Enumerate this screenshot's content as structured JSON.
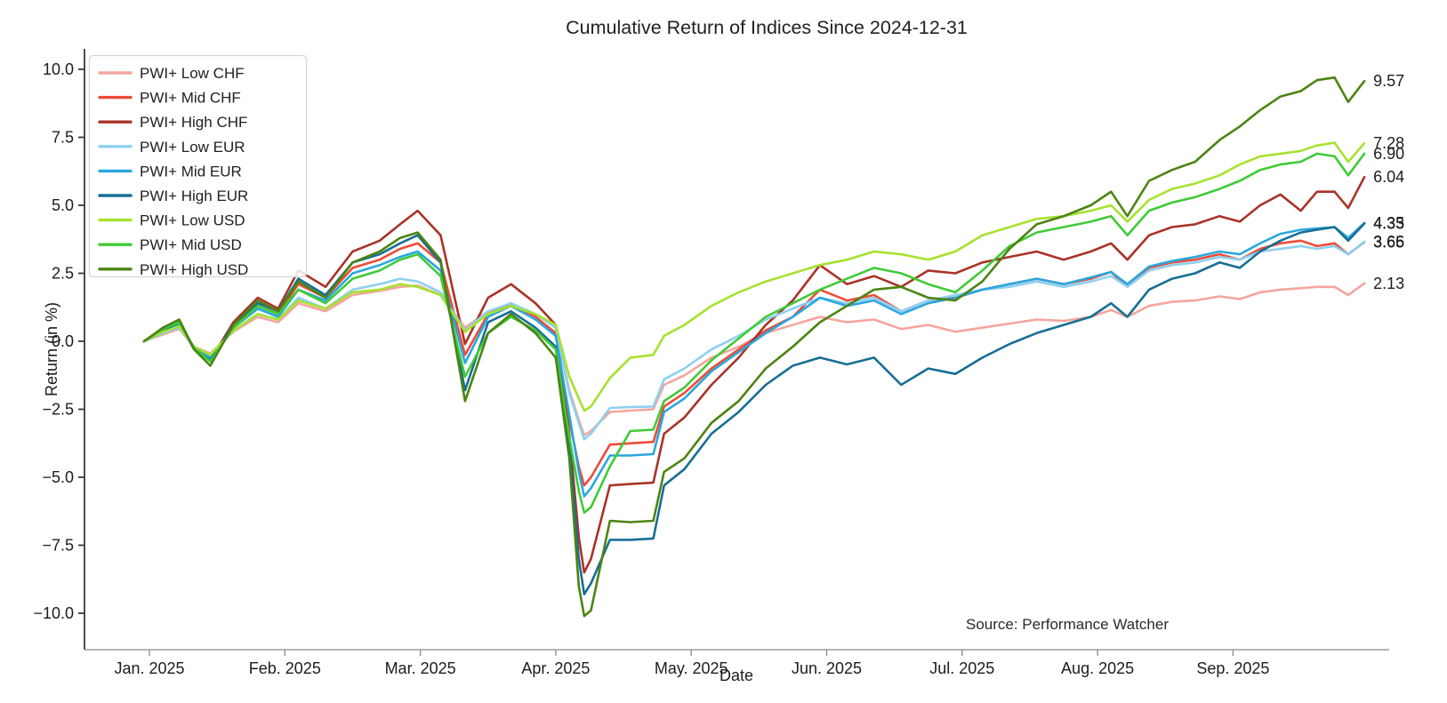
{
  "title": "Cumulative Return of Indices Since 2024-12-31",
  "source_note": "Source: Performance Watcher",
  "chart_data": {
    "type": "line",
    "title": "Cumulative Return of Indices Since 2024-12-31",
    "xlabel": "Date",
    "ylabel": "Return (in %)",
    "grid": false,
    "legend_position": "upper left",
    "ylim": [
      -10.5,
      10.5
    ],
    "y_tick_values": [
      10.0,
      7.5,
      5.0,
      2.5,
      0.0,
      -2.5,
      -5.0,
      -7.5,
      -10.0
    ],
    "y_tick_labels": [
      "10.0",
      "7.5",
      "5.0",
      "2.5",
      "0.0",
      "−2.5",
      "−5.0",
      "−7.5",
      "−10.0"
    ],
    "x_tick_values": [
      0,
      1,
      2,
      3,
      4,
      5,
      6,
      7,
      8
    ],
    "x_tick_labels": [
      "Jan. 2025",
      "Feb. 2025",
      "Mar. 2025",
      "Apr. 2025",
      "May. 2025",
      "Jun. 2025",
      "Jul. 2025",
      "Aug. 2025",
      "Sep. 2025"
    ],
    "x_unit": "months since 2025-01-01 (data starts 2024-12-31, ends late Sep 2025)",
    "x": [
      -0.04,
      0.1,
      0.22,
      0.33,
      0.45,
      0.62,
      0.8,
      0.95,
      1.1,
      1.3,
      1.5,
      1.7,
      1.85,
      1.98,
      2.15,
      2.33,
      2.5,
      2.67,
      2.85,
      3.0,
      3.1,
      3.17,
      3.21,
      3.26,
      3.4,
      3.55,
      3.72,
      3.8,
      3.95,
      4.15,
      4.35,
      4.55,
      4.75,
      4.95,
      5.15,
      5.35,
      5.55,
      5.75,
      5.95,
      6.15,
      6.35,
      6.55,
      6.75,
      6.95,
      7.1,
      7.22,
      7.38,
      7.55,
      7.72,
      7.9,
      8.05,
      8.2,
      8.35,
      8.5,
      8.62,
      8.75,
      8.85,
      8.97
    ],
    "series": [
      {
        "name": "PWI+ Low CHF",
        "color": "#F4A59D",
        "end_label": "2.13",
        "values": [
          0.0,
          0.25,
          0.45,
          -0.2,
          -0.45,
          0.35,
          0.9,
          0.7,
          1.4,
          1.1,
          1.7,
          1.85,
          2.0,
          2.05,
          1.7,
          0.5,
          1.1,
          1.35,
          1.0,
          0.5,
          -1.8,
          -2.9,
          -3.45,
          -3.3,
          -2.6,
          -2.55,
          -2.5,
          -1.6,
          -1.25,
          -0.6,
          -0.2,
          0.3,
          0.6,
          0.9,
          0.7,
          0.8,
          0.45,
          0.6,
          0.35,
          0.5,
          0.65,
          0.8,
          0.75,
          0.9,
          1.15,
          0.9,
          1.3,
          1.45,
          1.5,
          1.65,
          1.55,
          1.8,
          1.9,
          1.95,
          2.0,
          2.0,
          1.7,
          2.13
        ]
      },
      {
        "name": "PWI+ Mid CHF",
        "color": "#ED4C38",
        "end_label": "3.65",
        "values": [
          0.0,
          0.4,
          0.6,
          -0.25,
          -0.6,
          0.55,
          1.3,
          1.0,
          2.1,
          1.6,
          2.7,
          3.0,
          3.4,
          3.6,
          2.9,
          -0.5,
          1.0,
          1.4,
          0.9,
          0.3,
          -2.9,
          -4.6,
          -5.3,
          -5.0,
          -3.8,
          -3.75,
          -3.7,
          -2.4,
          -1.9,
          -1.0,
          -0.3,
          0.4,
          0.9,
          1.9,
          1.5,
          1.7,
          1.1,
          1.5,
          1.6,
          1.9,
          2.1,
          2.3,
          2.1,
          2.3,
          2.55,
          2.0,
          2.7,
          2.9,
          3.0,
          3.2,
          3.0,
          3.4,
          3.6,
          3.7,
          3.5,
          3.6,
          3.2,
          3.65
        ]
      },
      {
        "name": "PWI+ High CHF",
        "color": "#A93329",
        "end_label": "6.04",
        "values": [
          0.0,
          0.45,
          0.75,
          -0.3,
          -0.7,
          0.7,
          1.6,
          1.2,
          2.6,
          2.0,
          3.3,
          3.7,
          4.3,
          4.8,
          3.9,
          -0.1,
          1.6,
          2.1,
          1.4,
          0.6,
          -3.4,
          -7.2,
          -8.5,
          -8.0,
          -5.3,
          -5.25,
          -5.2,
          -3.4,
          -2.8,
          -1.6,
          -0.6,
          0.6,
          1.5,
          2.8,
          2.1,
          2.4,
          2.0,
          2.6,
          2.5,
          2.9,
          3.1,
          3.3,
          3.0,
          3.3,
          3.6,
          3.0,
          3.9,
          4.2,
          4.3,
          4.6,
          4.4,
          5.0,
          5.4,
          4.8,
          5.5,
          5.5,
          4.9,
          6.04
        ]
      },
      {
        "name": "PWI+ Low EUR",
        "color": "#8DD0F0",
        "end_label": "3.66",
        "values": [
          0.0,
          0.3,
          0.5,
          -0.2,
          -0.5,
          0.4,
          1.0,
          0.8,
          1.6,
          1.2,
          1.9,
          2.1,
          2.3,
          2.2,
          1.8,
          0.4,
          1.1,
          1.4,
          1.0,
          0.5,
          -1.9,
          -3.0,
          -3.6,
          -3.4,
          -2.45,
          -2.42,
          -2.4,
          -1.4,
          -1.0,
          -0.3,
          0.2,
          0.8,
          1.2,
          1.6,
          1.4,
          1.6,
          1.1,
          1.5,
          1.7,
          1.9,
          2.0,
          2.2,
          2.0,
          2.2,
          2.4,
          2.0,
          2.6,
          2.8,
          2.9,
          3.1,
          3.0,
          3.3,
          3.4,
          3.5,
          3.4,
          3.5,
          3.2,
          3.66
        ]
      },
      {
        "name": "PWI+ Mid EUR",
        "color": "#2AA7DE",
        "end_label": "4.35",
        "values": [
          0.0,
          0.35,
          0.6,
          -0.25,
          -0.6,
          0.5,
          1.2,
          0.9,
          1.9,
          1.5,
          2.5,
          2.8,
          3.1,
          3.3,
          2.6,
          -0.8,
          0.9,
          1.3,
          0.8,
          0.2,
          -2.7,
          -4.8,
          -5.7,
          -5.4,
          -4.2,
          -4.2,
          -4.15,
          -2.6,
          -2.1,
          -1.1,
          -0.4,
          0.3,
          0.9,
          1.6,
          1.3,
          1.5,
          1.0,
          1.4,
          1.6,
          1.9,
          2.1,
          2.3,
          2.1,
          2.35,
          2.55,
          2.1,
          2.75,
          2.95,
          3.1,
          3.3,
          3.2,
          3.6,
          3.95,
          4.1,
          4.15,
          4.2,
          3.8,
          4.35
        ]
      },
      {
        "name": "PWI+ High EUR",
        "color": "#176E94",
        "end_label": "4.33",
        "values": [
          0.0,
          0.4,
          0.7,
          -0.3,
          -0.7,
          0.6,
          1.4,
          1.1,
          2.3,
          1.7,
          2.9,
          3.2,
          3.6,
          3.9,
          2.9,
          -1.8,
          0.7,
          1.1,
          0.5,
          -0.2,
          -3.8,
          -8.0,
          -9.3,
          -8.9,
          -7.3,
          -7.3,
          -7.25,
          -5.3,
          -4.7,
          -3.4,
          -2.6,
          -1.6,
          -0.9,
          -0.6,
          -0.85,
          -0.6,
          -1.6,
          -1.0,
          -1.2,
          -0.6,
          -0.1,
          0.3,
          0.6,
          0.9,
          1.4,
          0.9,
          1.9,
          2.3,
          2.5,
          2.9,
          2.7,
          3.3,
          3.7,
          4.0,
          4.1,
          4.2,
          3.7,
          4.33
        ]
      },
      {
        "name": "PWI+ Low USD",
        "color": "#A6E22E",
        "end_label": "7.28",
        "values": [
          0.0,
          0.35,
          0.55,
          -0.2,
          -0.5,
          0.4,
          1.0,
          0.8,
          1.5,
          1.2,
          1.8,
          1.9,
          2.1,
          2.0,
          1.7,
          0.35,
          1.0,
          1.3,
          1.0,
          0.6,
          -1.3,
          -2.1,
          -2.55,
          -2.4,
          -1.35,
          -0.6,
          -0.5,
          0.2,
          0.6,
          1.3,
          1.8,
          2.2,
          2.5,
          2.8,
          3.0,
          3.3,
          3.2,
          3.0,
          3.3,
          3.9,
          4.2,
          4.5,
          4.6,
          4.8,
          5.0,
          4.4,
          5.2,
          5.6,
          5.8,
          6.1,
          6.5,
          6.8,
          6.9,
          7.0,
          7.2,
          7.3,
          6.6,
          7.28
        ]
      },
      {
        "name": "PWI+ Mid USD",
        "color": "#3FCB37",
        "end_label": "6.90",
        "values": [
          0.0,
          0.45,
          0.7,
          -0.25,
          -0.75,
          0.5,
          1.3,
          1.0,
          1.9,
          1.4,
          2.3,
          2.6,
          3.0,
          3.2,
          2.4,
          -1.3,
          0.3,
          0.9,
          0.4,
          -0.3,
          -3.5,
          -5.5,
          -6.3,
          -6.1,
          -4.6,
          -3.3,
          -3.25,
          -2.2,
          -1.7,
          -0.7,
          0.1,
          0.9,
          1.4,
          1.9,
          2.3,
          2.7,
          2.5,
          2.1,
          1.8,
          2.6,
          3.5,
          4.0,
          4.2,
          4.4,
          4.6,
          3.9,
          4.8,
          5.1,
          5.3,
          5.6,
          5.9,
          6.3,
          6.5,
          6.6,
          6.9,
          6.8,
          6.1,
          6.9
        ]
      },
      {
        "name": "PWI+ High USD",
        "color": "#4C8412",
        "end_label": "9.57",
        "values": [
          0.0,
          0.5,
          0.8,
          -0.3,
          -0.9,
          0.6,
          1.5,
          1.1,
          2.2,
          1.6,
          2.9,
          3.3,
          3.8,
          4.0,
          3.0,
          -2.2,
          0.3,
          1.0,
          0.3,
          -0.6,
          -4.3,
          -9.0,
          -10.1,
          -9.9,
          -6.6,
          -6.65,
          -6.6,
          -4.8,
          -4.3,
          -3.0,
          -2.2,
          -1.0,
          -0.2,
          0.7,
          1.3,
          1.9,
          2.0,
          1.6,
          1.5,
          2.2,
          3.4,
          4.3,
          4.6,
          5.0,
          5.5,
          4.6,
          5.9,
          6.3,
          6.6,
          7.4,
          7.9,
          8.5,
          9.0,
          9.2,
          9.6,
          9.7,
          8.8,
          9.57
        ]
      }
    ]
  }
}
